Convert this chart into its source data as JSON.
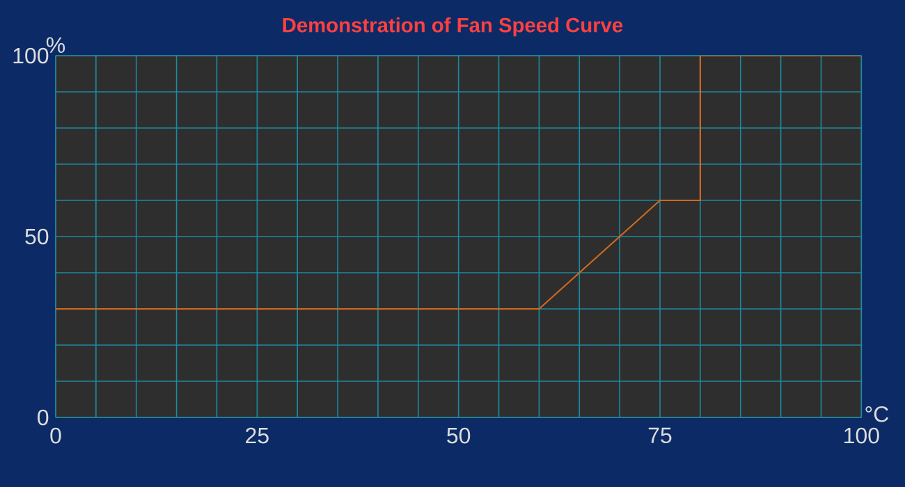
{
  "chart_data": {
    "type": "line",
    "title": "Demonstration of Fan Speed Curve",
    "xlabel": "°C",
    "ylabel": "%",
    "x": [
      0,
      60,
      75,
      80,
      80,
      100
    ],
    "series": [
      {
        "color": "#d2691e",
        "values": [
          30,
          30,
          60,
          60,
          100,
          100
        ]
      }
    ],
    "xlim": [
      0,
      100
    ],
    "ylim": [
      0,
      100
    ],
    "xticks": [
      0,
      {
        "value": 5,
        "label": null
      },
      {
        "value": 10,
        "label": null
      },
      {
        "value": 15,
        "label": null
      },
      {
        "value": 20,
        "label": null
      },
      25,
      {
        "value": 30,
        "label": null
      },
      {
        "value": 35,
        "label": null
      },
      {
        "value": 40,
        "label": null
      },
      {
        "value": 45,
        "label": null
      },
      50,
      {
        "value": 55,
        "label": null
      },
      {
        "value": 60,
        "label": null
      },
      {
        "value": 65,
        "label": null
      },
      {
        "value": 70,
        "label": null
      },
      75,
      {
        "value": 80,
        "label": null
      },
      {
        "value": 85,
        "label": null
      },
      {
        "value": 90,
        "label": null
      },
      {
        "value": 95,
        "label": null
      },
      100
    ],
    "yticks": [
      0,
      {
        "value": 10,
        "label": null
      },
      {
        "value": 20,
        "label": null
      },
      {
        "value": 30,
        "label": null
      },
      {
        "value": 40,
        "label": null
      },
      50,
      {
        "value": 60,
        "label": null
      },
      {
        "value": 70,
        "label": null
      },
      {
        "value": 80,
        "label": null
      },
      {
        "value": 90,
        "label": null
      },
      100
    ],
    "grid": true,
    "marker": "none",
    "line_style": "solid"
  }
}
